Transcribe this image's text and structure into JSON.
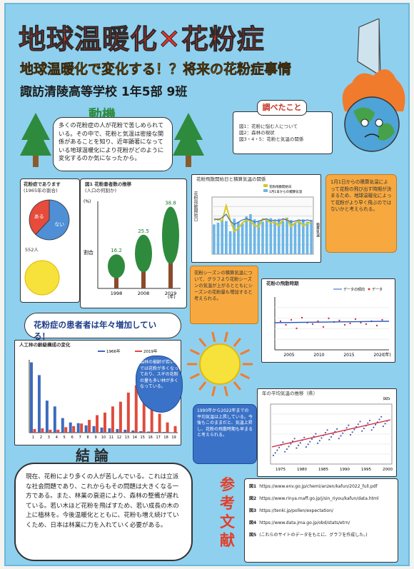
{
  "header": {
    "title": "地球温暖化✕花粉症",
    "subtitle": "地球温暖化で変化する！？将来の花粉症事情",
    "school": "諏訪清陵高等学校 1年5部 9班"
  },
  "motivation": {
    "heading": "動機",
    "body": "多くの花粉症の人が花粉で苦しめられている。その中で、花粉と気温は密接な関係があることを知り、近年顕著になっている地球温暖化により花粉がどのように変化するのか気になったから。"
  },
  "research": {
    "heading": "調べたこと",
    "items": [
      "図1：花粉に悩む人について",
      "図2：森林の現状",
      "図3・4・5：花粉と気温の関係"
    ]
  },
  "pie": {
    "title": "花粉症であります",
    "note": "(1965年の割合)",
    "slices": [
      {
        "label": "ない",
        "value": 62
      },
      {
        "label": "ある",
        "value": 38
      }
    ],
    "footnote": "552人"
  },
  "fig1": {
    "title": "図1 花粉患者数の推移",
    "subtitle": "(人口の何割か)",
    "unit": "(%)",
    "ylabel": "割合",
    "xunit": "(年)",
    "categories": [
      "1998",
      "2008",
      "2019"
    ],
    "values": [
      16.2,
      25.5,
      38.8
    ]
  },
  "fig2": {
    "title": "花粉飛散開始日と積算気温の関係",
    "legend": [
      "花粉飛散開始日",
      "1月1日からの積算気温"
    ],
    "left_label": "花粉飛散開始日",
    "right_label": "積算気温"
  },
  "note_right": "1月1日からの積算気温によって花粉の飛び出す時期が決まるため、地球温暖化によって花粉がより早く飛ぶのではないかと考えられる。",
  "cause": "花粉症の患者者は年々増加している！",
  "cause_highlight": "増加",
  "mid_note": "花粉シーズンの積算気温について、グラフより花粉シーズンの気温が上がるとともにシーズンの花粉量も増加すると考えられる。",
  "fig3": {
    "title": "花粉の飛散時期",
    "legend": [
      "データの傾向",
      "データ"
    ],
    "xticks": [
      "2005",
      "2010",
      "2015",
      "2020"
    ],
    "xunit": "(年)"
  },
  "fig4": {
    "title": "人工林の齢級構成の変化",
    "legend": [
      "1966年",
      "2019年"
    ],
    "categories": [
      "1",
      "2",
      "3",
      "4",
      "5",
      "6",
      "7",
      "8",
      "9",
      "10",
      "11",
      "12",
      "13",
      "14",
      "15",
      "16",
      "17",
      "18",
      "19"
    ],
    "series": [
      {
        "name": "1966年",
        "values": [
          193,
          158,
          88,
          72,
          40,
          28,
          26,
          20,
          18,
          14,
          12,
          10,
          8,
          6,
          4,
          3,
          2,
          2,
          1
        ]
      },
      {
        "name": "2019年",
        "values": [
          10,
          12,
          8,
          8,
          15,
          18,
          25,
          35,
          48,
          55,
          72,
          85,
          110,
          130,
          118,
          95,
          52,
          28,
          18
        ]
      }
    ]
  },
  "forest_note": "森林の樹齢が若い林では花粉が多くなっており、スギの花粉の量も多い林が多くなっている。",
  "temp_note": "1990年から2022年までの平均気温は上昇している。今後もこのままだと、気温上昇し、花粉の飛散時期も早まると考えられる。",
  "fig5": {
    "title": "年の平均気温の推移（県）",
    "label": "図5",
    "xticks": [
      "1975",
      "1980",
      "1985",
      "1990",
      "1995",
      "2000"
    ]
  },
  "conclusion": {
    "heading": "結論",
    "body": "現在、花粉により多くの人が苦しんでいる。これは立派な社会問題であり、これからもその問題は大きくなる一方である。また、林業の衰退により、森林の整備が遅れている。若い木ほど花粉を飛ばすため、若い成長の木の上に植林を。今後温暖化とともに、花粉も増え続けていくため、日本は林業に力を入れていく必要がある。"
  },
  "references": {
    "heading": "参考文献",
    "items": [
      {
        "label": "図1",
        "text": "https://www.env.go.jp/chemi/anzen/kafun/2022_full.pdf"
      },
      {
        "label": "図2",
        "text": "https://www.rinya.maff.go.jp/j/sin_riyou/kafun/data.html"
      },
      {
        "label": "図3",
        "text": "https://tenki.jp/pollen/expectation/"
      },
      {
        "label": "図4",
        "text": "https://www.data.jma.go.jp/obd/stats/etrn/"
      },
      {
        "label": "図5",
        "text": "(これらのサイトのデータをもとに、グラフを作成した。)"
      }
    ]
  },
  "colors": {
    "bg": "#8fd0ee",
    "title_red": "#e8322a",
    "subtitle_gold": "#f2b31f",
    "orange": "#f7a940",
    "tree": "#2e8b3d"
  }
}
